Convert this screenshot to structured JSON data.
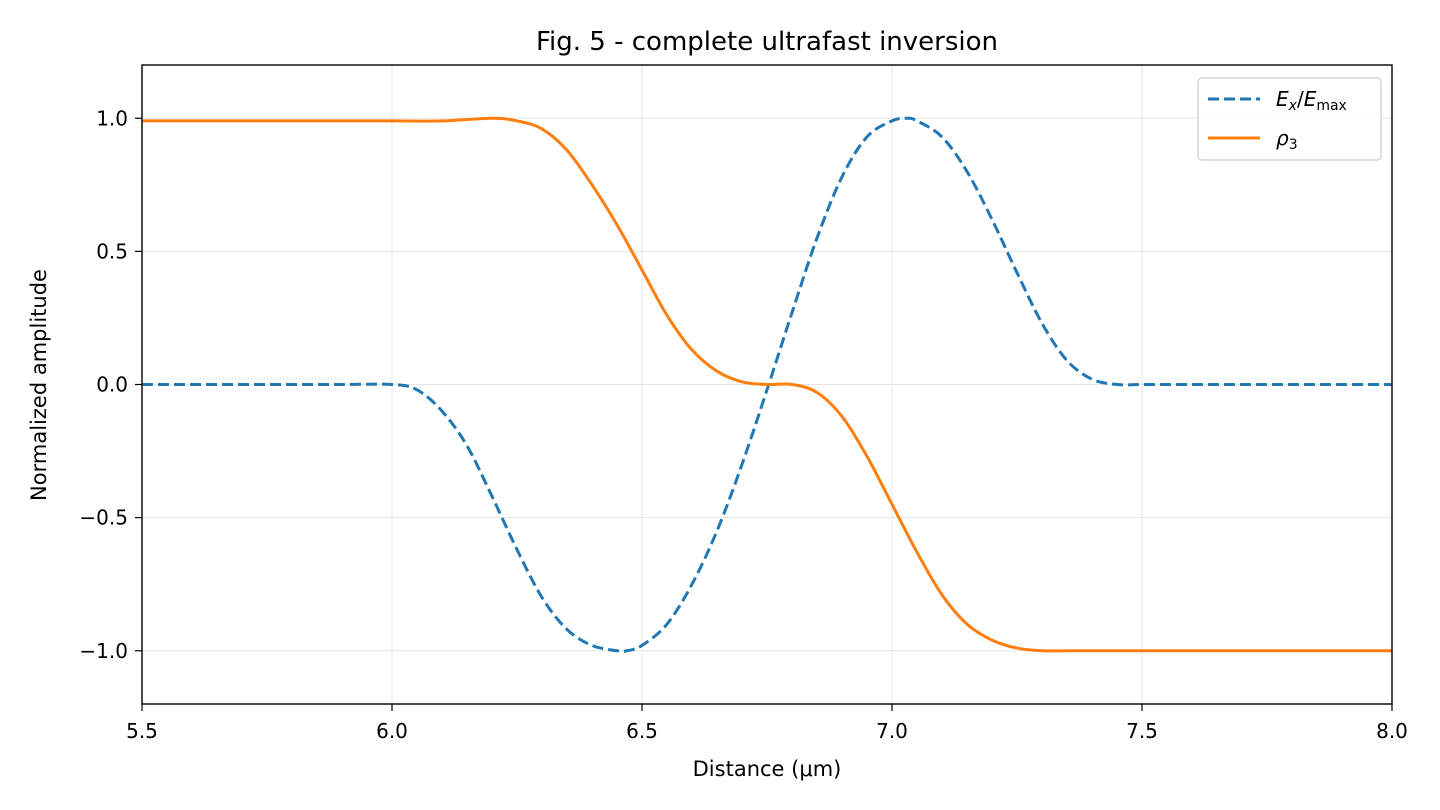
{
  "chart_data": {
    "type": "line",
    "title": "Fig. 5 - complete ultrafast inversion",
    "xlabel": "Distance (μm)",
    "ylabel": "Normalized amplitude",
    "xlim": [
      5.5,
      8.0
    ],
    "ylim": [
      -1.2,
      1.2
    ],
    "xticks": [
      5.5,
      6.0,
      6.5,
      7.0,
      7.5,
      8.0
    ],
    "xtick_labels": [
      "5.5",
      "6.0",
      "6.5",
      "7.0",
      "7.5",
      "8.0"
    ],
    "yticks": [
      1.0,
      0.5,
      0.0,
      -0.5,
      -1.0
    ],
    "ytick_labels": [
      "1.0",
      "0.5",
      "0.0",
      "−0.5",
      "−1.0"
    ],
    "grid": true,
    "legend_position": "top-right",
    "series": [
      {
        "name": "E_x/E_max",
        "legend_label": "Ex/Emax",
        "color": "#1f77b4",
        "style": "dashed",
        "x": [
          5.5,
          5.6,
          5.7,
          5.8,
          5.9,
          6.0,
          6.05,
          6.1,
          6.15,
          6.2,
          6.25,
          6.3,
          6.35,
          6.4,
          6.45,
          6.47,
          6.5,
          6.55,
          6.6,
          6.65,
          6.7,
          6.75,
          6.8,
          6.85,
          6.9,
          6.95,
          7.0,
          7.03,
          7.05,
          7.1,
          7.15,
          7.2,
          7.25,
          7.3,
          7.35,
          7.4,
          7.45,
          7.5,
          7.6,
          7.7,
          7.8,
          7.9,
          8.0
        ],
        "y": [
          0.0,
          0.0,
          0.0,
          0.0,
          0.0,
          0.0,
          -0.02,
          -0.1,
          -0.23,
          -0.42,
          -0.62,
          -0.8,
          -0.92,
          -0.98,
          -1.0,
          -1.0,
          -0.98,
          -0.9,
          -0.75,
          -0.55,
          -0.3,
          -0.02,
          0.27,
          0.55,
          0.78,
          0.93,
          0.99,
          1.0,
          0.99,
          0.93,
          0.8,
          0.62,
          0.42,
          0.23,
          0.09,
          0.02,
          0.0,
          0.0,
          0.0,
          0.0,
          0.0,
          0.0,
          0.0
        ]
      },
      {
        "name": "ρ3",
        "legend_label": "ρ3",
        "color": "#ff7f0e",
        "style": "solid",
        "x": [
          5.5,
          5.6,
          5.7,
          5.8,
          5.9,
          6.0,
          6.1,
          6.2,
          6.25,
          6.3,
          6.35,
          6.4,
          6.45,
          6.5,
          6.55,
          6.6,
          6.65,
          6.7,
          6.75,
          6.8,
          6.85,
          6.9,
          6.95,
          7.0,
          7.05,
          7.1,
          7.15,
          7.2,
          7.25,
          7.3,
          7.35,
          7.4,
          7.5,
          7.6,
          7.7,
          7.8,
          7.9,
          8.0
        ],
        "y": [
          0.99,
          0.99,
          0.99,
          0.99,
          0.99,
          0.99,
          0.99,
          1.0,
          0.99,
          0.96,
          0.88,
          0.75,
          0.6,
          0.43,
          0.26,
          0.13,
          0.05,
          0.01,
          0.0,
          0.0,
          -0.03,
          -0.12,
          -0.27,
          -0.45,
          -0.63,
          -0.79,
          -0.9,
          -0.96,
          -0.99,
          -1.0,
          -1.0,
          -1.0,
          -1.0,
          -1.0,
          -1.0,
          -1.0,
          -1.0,
          -1.0
        ]
      }
    ]
  }
}
